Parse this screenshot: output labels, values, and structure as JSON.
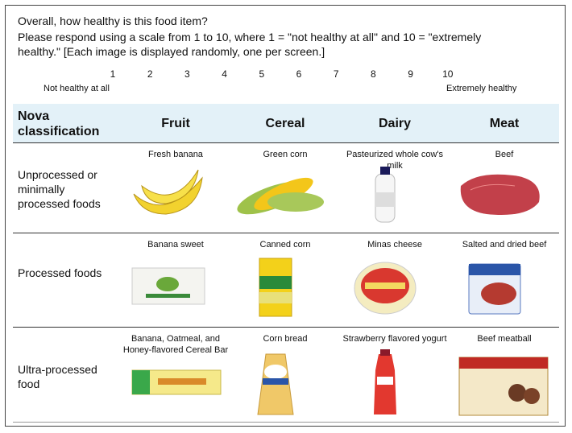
{
  "question": {
    "lines": [
      "Overall, how healthy is this food item?",
      "Please respond using a scale from 1 to 10, where 1 = \"not healthy at all\" and 10 = \"extremely",
      "healthy.\" [Each image is displayed randomly, one per screen.]"
    ]
  },
  "scale": {
    "points": [
      1,
      2,
      3,
      4,
      5,
      6,
      7,
      8,
      9,
      10
    ],
    "low_label": "Not healthy at all",
    "high_label": "Extremely healthy"
  },
  "table": {
    "header": [
      "Nova classification",
      "Fruit",
      "Cereal",
      "Dairy",
      "Meat"
    ],
    "rows": [
      {
        "label": "Unprocessed or minimally processed foods",
        "items": [
          "Fresh banana",
          "Green corn",
          "Pasteurized whole cow's milk",
          "Beef"
        ]
      },
      {
        "label": "Processed foods",
        "items": [
          "Banana sweet",
          "Canned  corn",
          "Minas cheese",
          "Salted and dried beef"
        ]
      },
      {
        "label": "Ultra-processed food",
        "items": [
          "Banana, Oatmeal, and Honey-flavored Cereal Bar",
          "Corn bread",
          "Strawberry flavored yogurt",
          "Beef meatball"
        ]
      }
    ]
  }
}
